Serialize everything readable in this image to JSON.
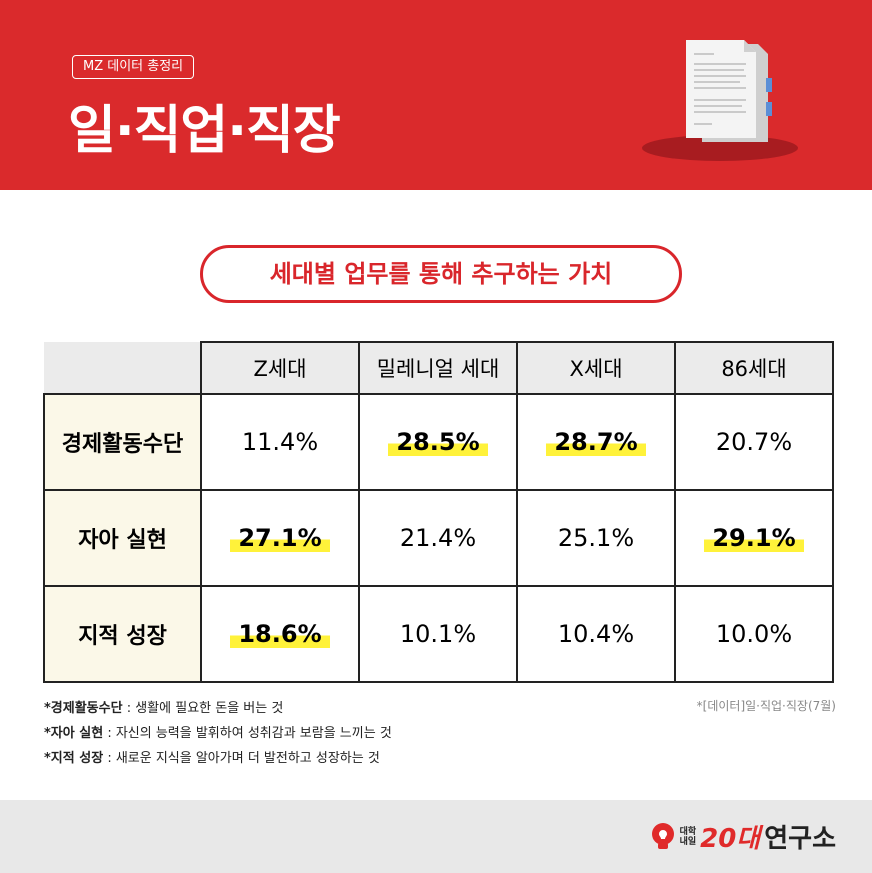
{
  "header": {
    "tag": "MZ 데이터 총정리",
    "title": "일·직업·직장"
  },
  "subtitle": "세대별 업무를 통해 추구하는 가치",
  "table": {
    "columns": [
      "Z세대",
      "밀레니얼 세대",
      "X세대",
      "86세대"
    ],
    "rows": [
      {
        "label": "경제활동수단",
        "cells": [
          "11.4%",
          "28.5%",
          "28.7%",
          "20.7%"
        ],
        "highlight": [
          1,
          2
        ]
      },
      {
        "label": "자아 실현",
        "cells": [
          "27.1%",
          "21.4%",
          "25.1%",
          "29.1%"
        ],
        "highlight": [
          0,
          3
        ]
      },
      {
        "label": "지적 성장",
        "cells": [
          "18.6%",
          "10.1%",
          "10.4%",
          "10.0%"
        ],
        "highlight": [
          0
        ]
      }
    ]
  },
  "notes": [
    {
      "term": "*경제활동수단",
      "desc": ": 생활에 필요한 돈을 버는 것"
    },
    {
      "term": "*자아 실현",
      "desc": ": 자신의 능력을 발휘하여 성취감과 보람을 느끼는 것"
    },
    {
      "term": "*지적 성장",
      "desc": ": 새로운 지식을 알아가며 더 발전하고 성장하는 것"
    }
  ],
  "source": "*[데이터]일·직업·직장(7월)",
  "footer": {
    "logo_small_1": "대학",
    "logo_small_2": "내일",
    "logo_num": "20대",
    "logo_text": "연구소"
  }
}
